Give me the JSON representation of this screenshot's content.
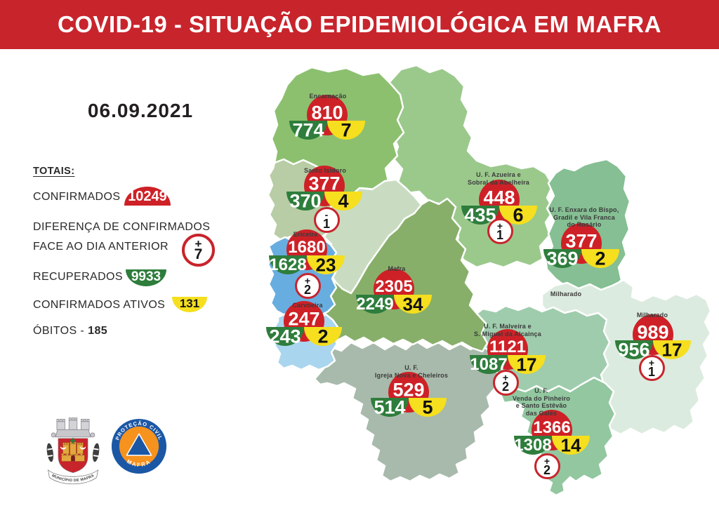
{
  "header": {
    "title": "COVID-19 - SITUAÇÃO EPIDEMIOLÓGICA EM MAFRA"
  },
  "date": "06.09.2021",
  "totals": {
    "heading": "TOTAIS:",
    "confirmados_label": "CONFIRMADOS",
    "confirmados_value": "10249",
    "diff_label_line1": "DIFERENÇA DE CONFIRMADOS",
    "diff_label_line2": "FACE AO DIA ANTERIOR",
    "diff_sign": "+",
    "diff_value": "7",
    "recuperados_label": "RECUPERADOS",
    "recuperados_value": "9933",
    "ativos_label": "CONFIRMADOS ATIVOS",
    "ativos_value": "131",
    "obitos_label": "ÓBITOS -",
    "obitos_value": "185"
  },
  "colors": {
    "header_red": "#C8242C",
    "badge_red": "#CE2127",
    "badge_green": "#2E7D3C",
    "badge_yellow": "#F5DF1E",
    "delta_ring_red": "#C8242C",
    "map_boundary": "#FFFFFF",
    "mafra_inner_shade": "#C9DCC1"
  },
  "map": {
    "regions": [
      {
        "id": "encarnacao",
        "name_lines": [
          "Encarnação"
        ],
        "confirmed": 810,
        "recovered": 774,
        "active": 7,
        "delta": null,
        "color": "#8CC06F"
      },
      {
        "id": "santo_isidoro",
        "name_lines": [
          "Santo Isidoro"
        ],
        "confirmed": 377,
        "recovered": 370,
        "active": 4,
        "delta": {
          "sign": "-",
          "value": 1
        },
        "color": "#B8CDA5"
      },
      {
        "id": "ericeira",
        "name_lines": [
          "Ericeira"
        ],
        "confirmed": 1680,
        "recovered": 1628,
        "active": 23,
        "delta": {
          "sign": "+",
          "value": 2
        },
        "color": "#68ADE0"
      },
      {
        "id": "carvoeira",
        "name_lines": [
          "Carvoeira"
        ],
        "confirmed": 247,
        "recovered": 243,
        "active": 2,
        "delta": null,
        "color": "#A9D5EE"
      },
      {
        "id": "mafra",
        "name_lines": [
          "Mafra"
        ],
        "confirmed": 2305,
        "recovered": 2249,
        "active": 34,
        "delta": null,
        "color": "#87AF6A"
      },
      {
        "id": "azueira",
        "name_lines": [
          "U. F. Azueira e",
          "Sobral da Abelheira"
        ],
        "confirmed": 448,
        "recovered": 435,
        "active": 6,
        "delta": {
          "sign": "+",
          "value": 1
        },
        "color": "#9BC98C"
      },
      {
        "id": "enxara",
        "name_lines": [
          "U. F. Enxara do Bispo,",
          "Gradil e Vila Franca",
          "do Rosário"
        ],
        "confirmed": 377,
        "recovered": 369,
        "active": 2,
        "delta": null,
        "color": "#85BF93"
      },
      {
        "id": "milharado",
        "name_lines": [
          "Milharado"
        ],
        "confirmed": 989,
        "recovered": 956,
        "active": 17,
        "delta": {
          "sign": "+",
          "value": 1
        },
        "color": "#DCEBDF"
      },
      {
        "id": "malveira",
        "name_lines": [
          "U. F. Malveira e",
          "S. Miguel da Alcainça"
        ],
        "confirmed": 1121,
        "recovered": 1087,
        "active": 17,
        "delta": {
          "sign": "+",
          "value": 2
        },
        "color": "#9FCCAD"
      },
      {
        "id": "igreja",
        "name_lines": [
          "U. F.",
          "Igreja Nova e Cheleiros"
        ],
        "confirmed": 529,
        "recovered": 514,
        "active": 5,
        "delta": null,
        "color": "#A8BAAB"
      },
      {
        "id": "venda",
        "name_lines": [
          "U. F.",
          "Venda do Pinheiro",
          "e Santo Estêvão",
          "das Galés"
        ],
        "confirmed": 1366,
        "recovered": 1308,
        "active": 14,
        "delta": {
          "sign": "+",
          "value": 2
        },
        "color": "#92C7A0"
      }
    ]
  },
  "logos": {
    "municipality_ribbon": "MUNICÍPIO DE MAFRA",
    "civil_arc_top": "PROTEÇÃO CIVIL",
    "civil_arc_bottom": "MAFRA"
  }
}
